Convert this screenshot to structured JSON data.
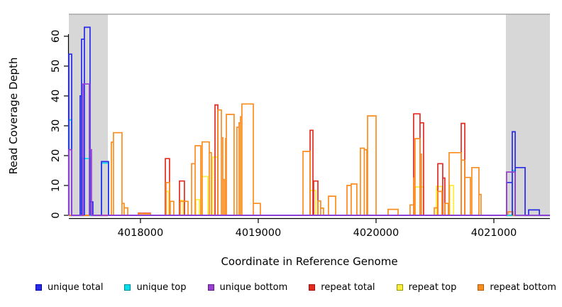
{
  "chart_data": {
    "type": "line",
    "subtype": "step-coverage",
    "title": "",
    "xlabel": "Coordinate in Reference Genome",
    "ylabel": "Read Coverage Depth",
    "xlim": [
      4017392,
      4021476
    ],
    "ylim": [
      0,
      67
    ],
    "x_ticks": [
      4018000,
      4019000,
      4020000,
      4021000
    ],
    "y_ticks": [
      0,
      10,
      20,
      30,
      40,
      50,
      60
    ],
    "grid": false,
    "legend_position": "bottom",
    "shaded_regions": [
      {
        "x0": 4017392,
        "x1": 4017723,
        "color": "#d7d7d7"
      },
      {
        "x0": 4021102,
        "x1": 4021476,
        "color": "#d7d7d7"
      }
    ],
    "top_border_color": "#a8a8a8",
    "axis_color": "#000000",
    "draw_order": [
      "repeat top",
      "repeat total",
      "repeat bottom",
      "unique top",
      "unique total",
      "unique bottom"
    ],
    "series": [
      {
        "name": "unique total",
        "color": "#2929ea",
        "legend_border": "#0000b0",
        "segments": [
          [
            4017392,
            4017416,
            54
          ],
          [
            4017488,
            4017500,
            40
          ],
          [
            4017500,
            4017524,
            59
          ],
          [
            4017524,
            4017572,
            63
          ],
          [
            4017572,
            4017596,
            4.5
          ],
          [
            4017669,
            4017729,
            18
          ],
          [
            4021108,
            4021156,
            11
          ],
          [
            4021156,
            4021181,
            28
          ],
          [
            4021181,
            4021265,
            16
          ],
          [
            4021295,
            4021386,
            1.8
          ]
        ]
      },
      {
        "name": "unique top",
        "color": "#00e0ea",
        "legend_border": "#008b9a",
        "segments": [
          [
            4017392,
            4017416,
            32
          ],
          [
            4017500,
            4017572,
            19
          ],
          [
            4017669,
            4017729,
            17.5
          ],
          [
            4021156,
            4021181,
            15
          ]
        ]
      },
      {
        "name": "unique bottom",
        "color": "#9a3fd4",
        "legend_border": "#5c1d86",
        "segments": [
          [
            4017392,
            4017416,
            22
          ],
          [
            4017512,
            4017566,
            44
          ],
          [
            4017566,
            4017584,
            22
          ],
          [
            4021108,
            4021181,
            14.5
          ]
        ]
      },
      {
        "name": "repeat total",
        "color": "#e52a20",
        "legend_border": "#9c0f08",
        "segments": [
          [
            4017982,
            4018084,
            0.7
          ],
          [
            4018211,
            4018247,
            19
          ],
          [
            4018331,
            4018373,
            11.5
          ],
          [
            4018633,
            4018657,
            37
          ],
          [
            4019440,
            4019464,
            28.5
          ],
          [
            4019470,
            4019506,
            11.5
          ],
          [
            4020319,
            4020373,
            34
          ],
          [
            4020373,
            4020403,
            31
          ],
          [
            4020524,
            4020566,
            17.3
          ],
          [
            4020566,
            4020584,
            12.5
          ],
          [
            4020723,
            4020753,
            30.8
          ]
        ]
      },
      {
        "name": "repeat top",
        "color": "#fbee3c",
        "legend_border": "#97950a",
        "segments": [
          [
            4018217,
            4018241,
            8
          ],
          [
            4018337,
            4018361,
            5
          ],
          [
            4018470,
            4018500,
            5.3
          ],
          [
            4018524,
            4018572,
            13
          ],
          [
            4018614,
            4018657,
            19.5
          ],
          [
            4019440,
            4019488,
            8.3
          ],
          [
            4020331,
            4020403,
            9.5
          ],
          [
            4020512,
            4020560,
            9.7
          ],
          [
            4020626,
            4020658,
            10
          ]
        ]
      },
      {
        "name": "repeat bottom",
        "color": "#fb8c1e",
        "legend_border": "#b05e05",
        "segments": [
          [
            4017753,
            4017771,
            24.5
          ],
          [
            4017771,
            4017843,
            27.7
          ],
          [
            4017843,
            4017861,
            4
          ],
          [
            4017861,
            4017892,
            2.5
          ],
          [
            4017982,
            4018084,
            0.5
          ],
          [
            4018217,
            4018247,
            11
          ],
          [
            4018253,
            4018283,
            4.7
          ],
          [
            4018337,
            4018404,
            4.7
          ],
          [
            4018434,
            4018464,
            17.3
          ],
          [
            4018464,
            4018512,
            23.3
          ],
          [
            4018524,
            4018584,
            24.6
          ],
          [
            4018584,
            4018602,
            21
          ],
          [
            4018657,
            4018687,
            35.3
          ],
          [
            4018687,
            4018699,
            26
          ],
          [
            4018699,
            4018711,
            12
          ],
          [
            4018723,
            4018729,
            25.7
          ],
          [
            4018729,
            4018795,
            33.8
          ],
          [
            4018819,
            4018837,
            29.5
          ],
          [
            4018837,
            4018849,
            31
          ],
          [
            4018849,
            4018861,
            33
          ],
          [
            4018861,
            4018958,
            37.3
          ],
          [
            4018958,
            4019018,
            4
          ],
          [
            4019380,
            4019440,
            21.4
          ],
          [
            4019506,
            4019530,
            4.8
          ],
          [
            4019530,
            4019554,
            2.4
          ],
          [
            4019596,
            4019657,
            6.4
          ],
          [
            4019753,
            4019789,
            10
          ],
          [
            4019789,
            4019837,
            10.5
          ],
          [
            4019867,
            4019900,
            22.5
          ],
          [
            4019900,
            4019922,
            22
          ],
          [
            4019928,
            4020000,
            33.3
          ],
          [
            4020102,
            4020187,
            2
          ],
          [
            4020289,
            4020319,
            3.5
          ],
          [
            4020319,
            4020331,
            12.5
          ],
          [
            4020331,
            4020373,
            25.7
          ],
          [
            4020373,
            4020385,
            20.5
          ],
          [
            4020494,
            4020524,
            2.5
          ],
          [
            4020524,
            4020560,
            8
          ],
          [
            4020584,
            4020614,
            4
          ],
          [
            4020620,
            4020723,
            21
          ],
          [
            4020723,
            4020753,
            18.5
          ],
          [
            4020753,
            4020801,
            12.7
          ],
          [
            4020813,
            4020873,
            16
          ],
          [
            4020873,
            4020891,
            7
          ],
          [
            4021120,
            4021163,
            1.2
          ]
        ]
      }
    ]
  }
}
